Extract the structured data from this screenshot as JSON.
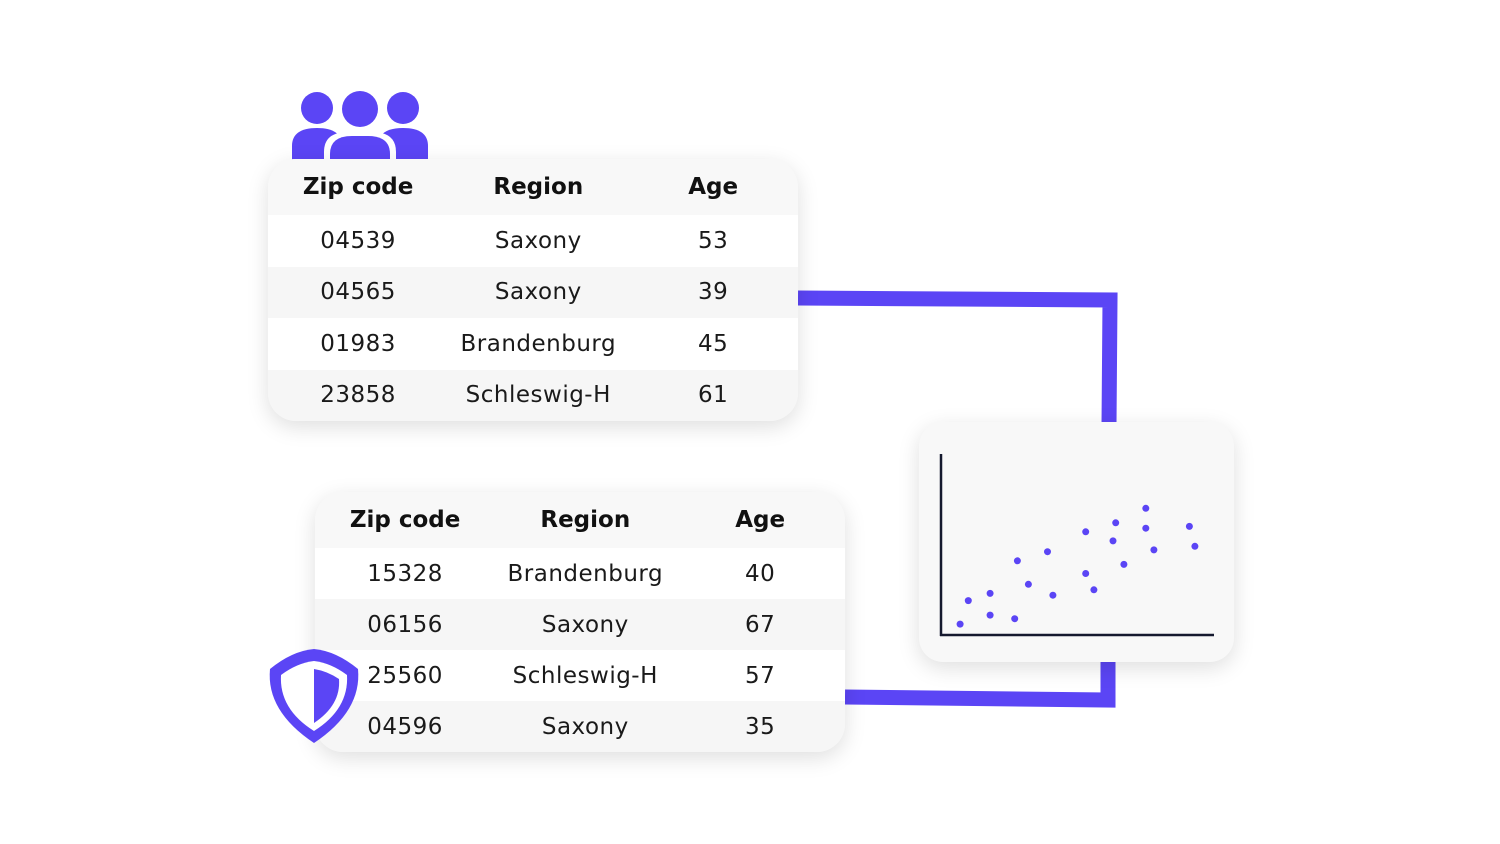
{
  "colors": {
    "accent": "#5b45f5",
    "axis": "#15192e",
    "card_bg": "#f8f8f8"
  },
  "icons": {
    "group": "people-group-icon",
    "protection": "shield-icon"
  },
  "table_original": {
    "headers": [
      "Zip code",
      "Region",
      "Age"
    ],
    "rows": [
      [
        "04539",
        "Saxony",
        "53"
      ],
      [
        "04565",
        "Saxony",
        "39"
      ],
      [
        "01983",
        "Brandenburg",
        "45"
      ],
      [
        "23858",
        "Schleswig-H",
        "61"
      ]
    ]
  },
  "table_synthetic": {
    "headers": [
      "Zip code",
      "Region",
      "Age"
    ],
    "rows": [
      [
        "15328",
        "Brandenburg",
        "40"
      ],
      [
        "06156",
        "Saxony",
        "67"
      ],
      [
        "25560",
        "Schleswig-H",
        "57"
      ],
      [
        "04596",
        "Saxony",
        "35"
      ]
    ]
  },
  "chart_data": {
    "type": "scatter",
    "title": "",
    "xlabel": "",
    "ylabel": "",
    "xlim": [
      0,
      10
    ],
    "ylim": [
      0,
      10
    ],
    "grid": false,
    "points": [
      [
        0.7,
        0.6
      ],
      [
        1.0,
        1.9
      ],
      [
        1.8,
        1.1
      ],
      [
        1.8,
        2.3
      ],
      [
        2.7,
        0.9
      ],
      [
        2.8,
        4.1
      ],
      [
        3.2,
        2.8
      ],
      [
        3.9,
        4.6
      ],
      [
        4.1,
        2.2
      ],
      [
        5.3,
        3.4
      ],
      [
        5.3,
        5.7
      ],
      [
        5.6,
        2.5
      ],
      [
        6.3,
        5.2
      ],
      [
        6.4,
        6.2
      ],
      [
        6.7,
        3.9
      ],
      [
        7.5,
        7.0
      ],
      [
        7.5,
        5.9
      ],
      [
        7.8,
        4.7
      ],
      [
        9.1,
        6.0
      ],
      [
        9.3,
        4.9
      ]
    ]
  }
}
